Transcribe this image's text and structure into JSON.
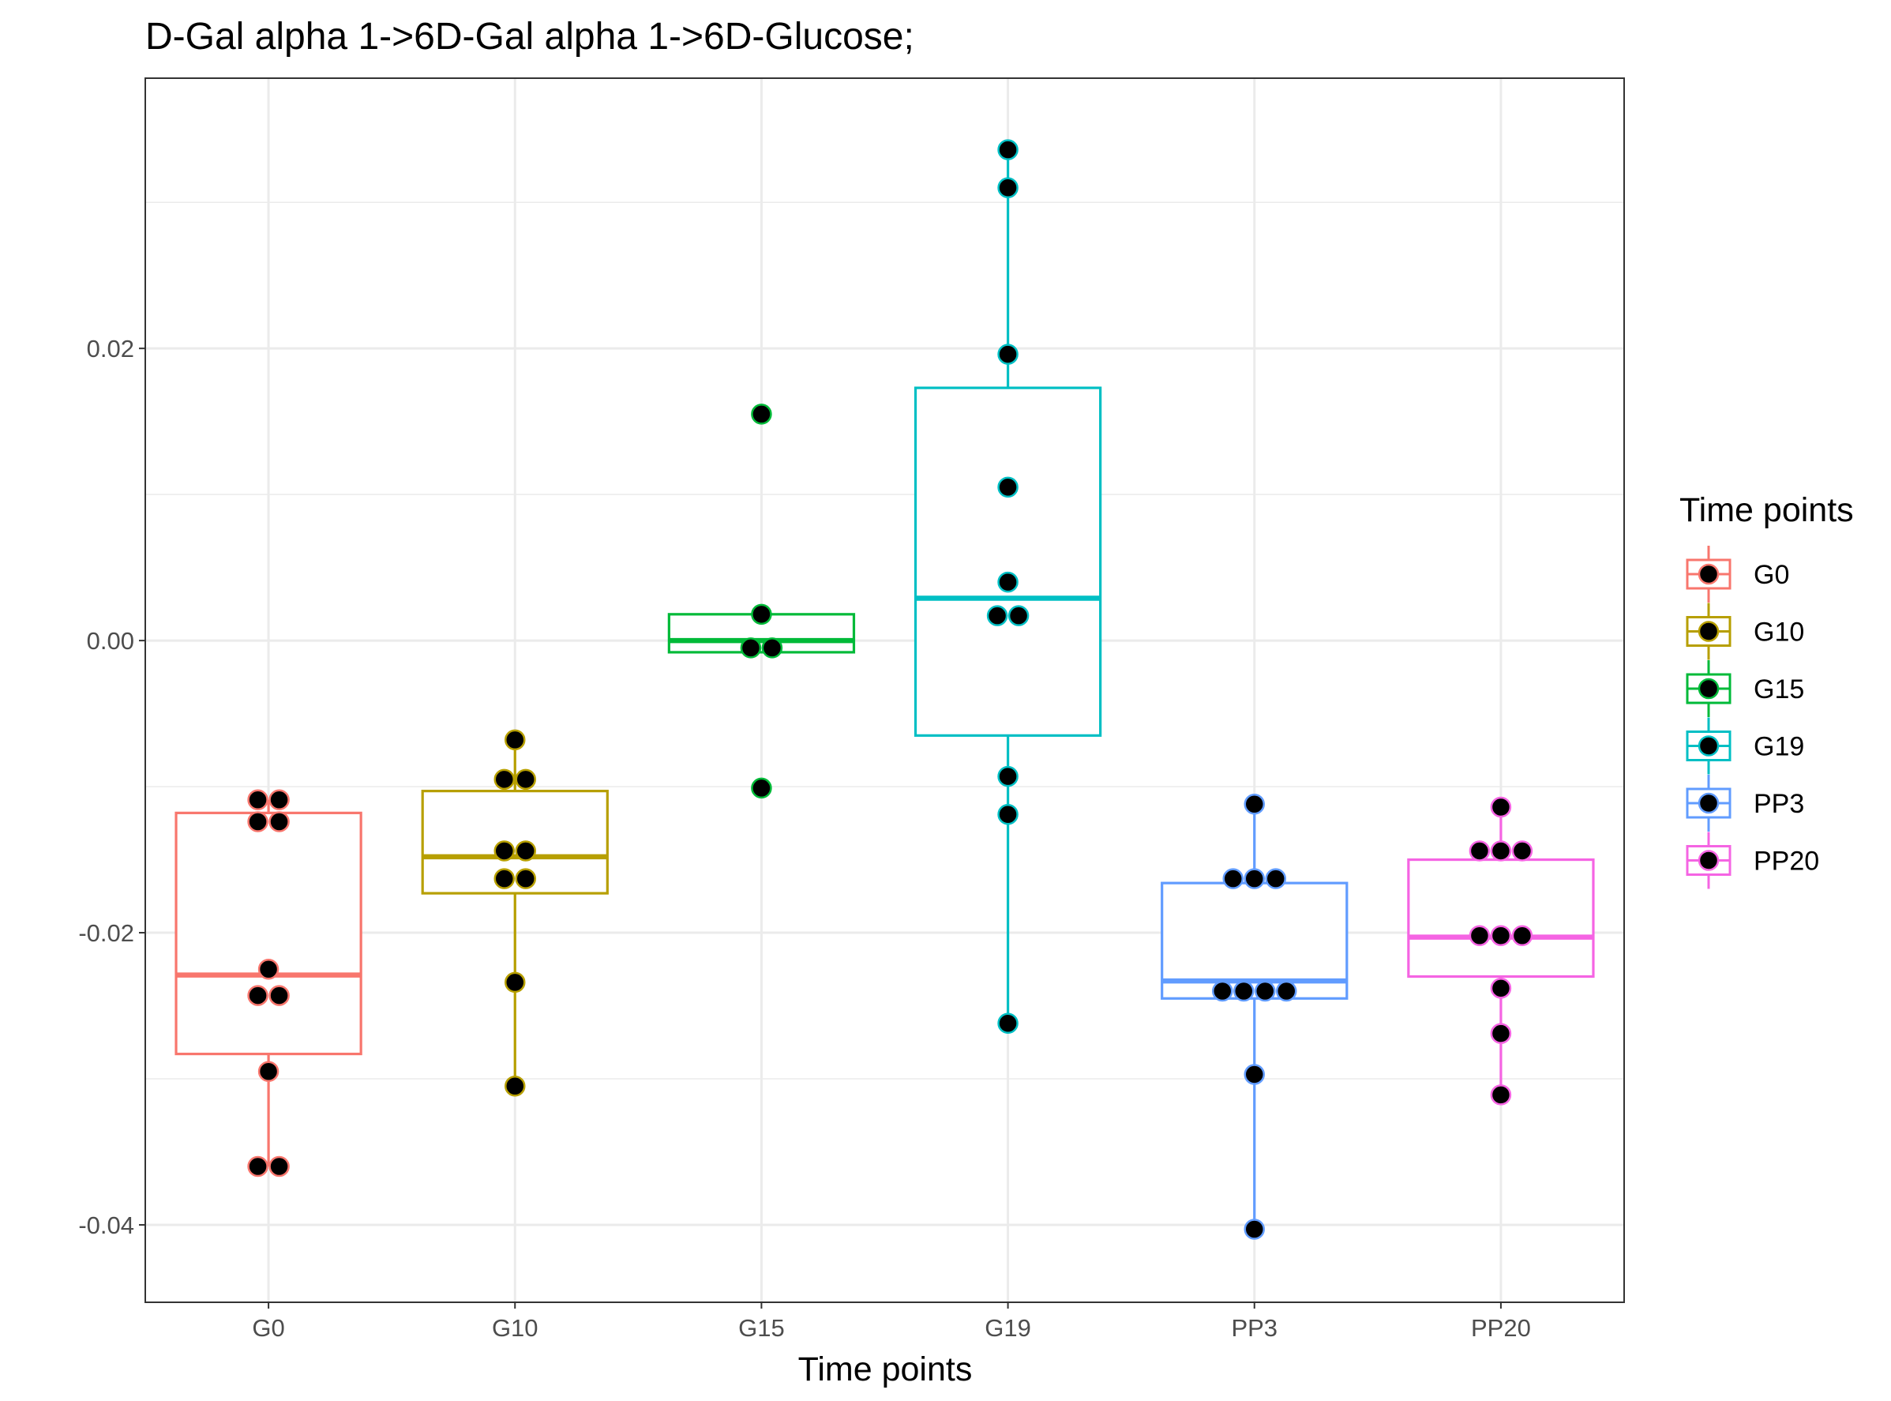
{
  "chart_data": {
    "type": "box",
    "title": "D-Gal alpha 1->6D-Gal alpha 1->6D-Glucose;",
    "xlabel": "Time points",
    "ylabel": "",
    "categories": [
      "G0",
      "G10",
      "G15",
      "G19",
      "PP3",
      "PP20"
    ],
    "ylim": [
      -0.0453,
      0.0385
    ],
    "yticks": [
      -0.04,
      -0.02,
      0.0,
      0.02
    ],
    "ytick_labels": [
      "-0.04",
      "-0.02",
      "0.00",
      "0.02"
    ],
    "grid": true,
    "legend": {
      "title": "Time points",
      "placement": "right",
      "entries": [
        "G0",
        "G10",
        "G15",
        "G19",
        "PP3",
        "PP20"
      ]
    },
    "colors": {
      "G0": "#F8766D",
      "G10": "#B79F00",
      "G15": "#00BA38",
      "G19": "#00BFC4",
      "PP3": "#619CFF",
      "PP20": "#F564E3"
    },
    "boxes": [
      {
        "name": "G0",
        "whisker_low": -0.036,
        "q1": -0.0283,
        "median": -0.0229,
        "q3": -0.0118,
        "whisker_high": -0.0109
      },
      {
        "name": "G10",
        "whisker_low": -0.0305,
        "q1": -0.0173,
        "median": -0.0148,
        "q3": -0.0103,
        "whisker_high": -0.0068
      },
      {
        "name": "G15",
        "whisker_low": -0.0008,
        "q1": -0.0008,
        "median": 0.0,
        "q3": 0.0018,
        "whisker_high": 0.0018
      },
      {
        "name": "G19",
        "whisker_low": -0.0262,
        "q1": -0.0065,
        "median": 0.0029,
        "q3": 0.0173,
        "whisker_high": 0.0336
      },
      {
        "name": "PP3",
        "whisker_low": -0.0403,
        "q1": -0.0245,
        "median": -0.0233,
        "q3": -0.0166,
        "whisker_high": -0.0112
      },
      {
        "name": "PP20",
        "whisker_low": -0.0311,
        "q1": -0.023,
        "median": -0.0203,
        "q3": -0.015,
        "whisker_high": -0.0114
      }
    ],
    "points": [
      {
        "name": "G0",
        "values": [
          -0.0109,
          -0.0109,
          -0.0124,
          -0.0124,
          -0.0225,
          -0.0243,
          -0.0243,
          -0.0295,
          -0.036,
          -0.036
        ]
      },
      {
        "name": "G10",
        "values": [
          -0.0068,
          -0.0095,
          -0.0095,
          -0.0144,
          -0.0144,
          -0.0163,
          -0.0163,
          -0.0234,
          -0.0305
        ]
      },
      {
        "name": "G15",
        "values": [
          0.0155,
          0.0018,
          -0.0005,
          -0.0005,
          -0.0101
        ]
      },
      {
        "name": "G19",
        "values": [
          0.0336,
          0.031,
          0.0196,
          0.0105,
          0.004,
          0.0017,
          0.0017,
          -0.0093,
          -0.0119,
          -0.0262
        ]
      },
      {
        "name": "PP3",
        "values": [
          -0.0112,
          -0.0163,
          -0.0163,
          -0.0163,
          -0.024,
          -0.024,
          -0.024,
          -0.024,
          -0.0297,
          -0.0403
        ]
      },
      {
        "name": "PP20",
        "values": [
          -0.0114,
          -0.0144,
          -0.0144,
          -0.0144,
          -0.0202,
          -0.0202,
          -0.0202,
          -0.0238,
          -0.0269,
          -0.0311
        ]
      }
    ]
  }
}
